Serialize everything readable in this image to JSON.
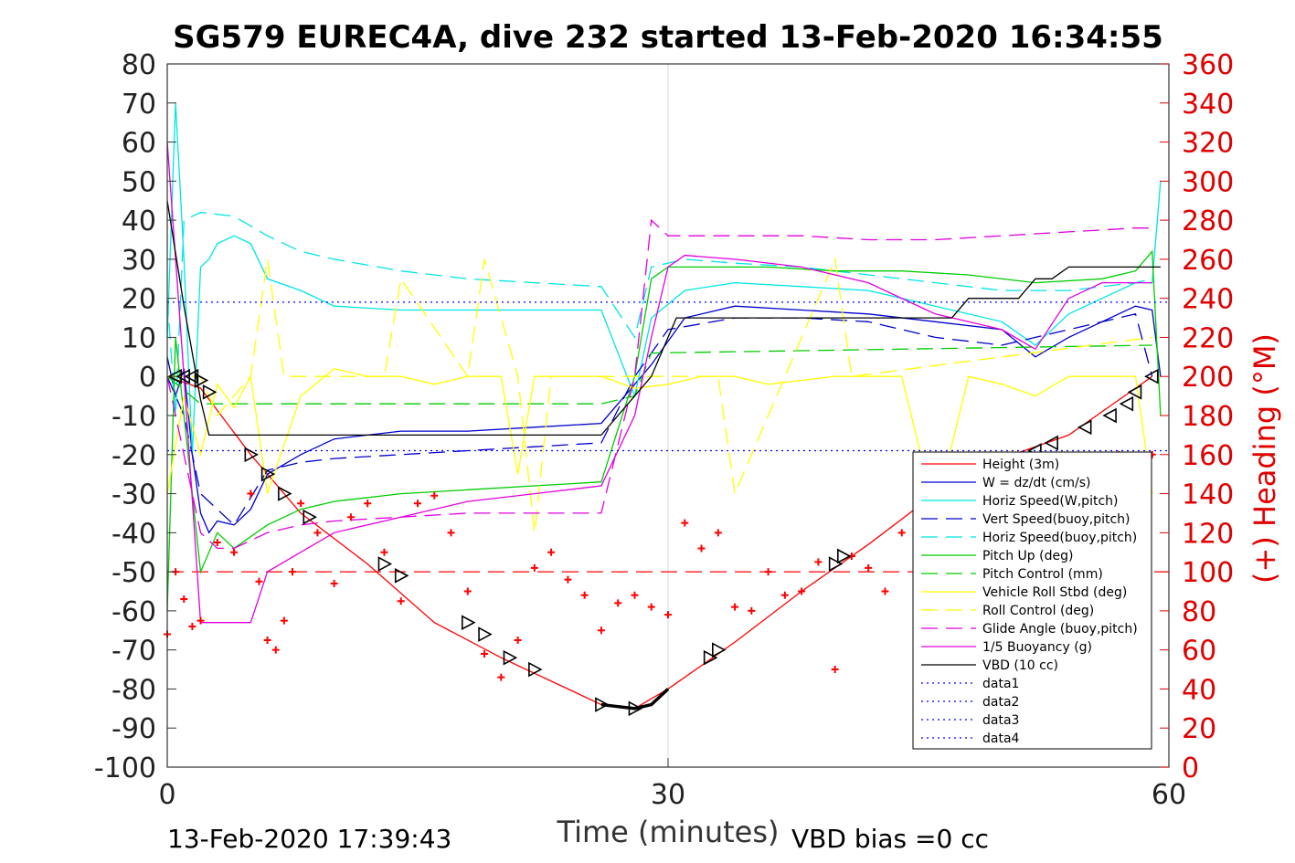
{
  "chart_data": {
    "type": "line",
    "title": "SG579 EUREC4A, dive 232 started 13-Feb-2020 16:34:55",
    "xlabel": "Time (minutes)",
    "ylabel_right": "(+) Heading (°M)",
    "footer_left": "13-Feb-2020 17:39:43",
    "footer_right": "VBD bias =0 cc",
    "xlim": [
      0,
      60
    ],
    "ylim": [
      -100,
      80
    ],
    "ylim_right": [
      0,
      360
    ],
    "x_ticks": [
      "0",
      "30",
      "60"
    ],
    "y_ticks": [
      "80",
      "70",
      "60",
      "50",
      "40",
      "30",
      "20",
      "10",
      "0",
      "-10",
      "-20",
      "-30",
      "-40",
      "-50",
      "-60",
      "-70",
      "-80",
      "-90",
      "-100"
    ],
    "y_ticks_right": [
      "360",
      "340",
      "320",
      "300",
      "280",
      "260",
      "240",
      "220",
      "200",
      "180",
      "160",
      "140",
      "120",
      "100",
      "80",
      "60",
      "40",
      "20",
      "0"
    ],
    "grid": "x=30 only",
    "legend_position": "bottom-right",
    "colors": {
      "height": "#ff0000",
      "w": "#0000cd",
      "hspeed": "#00e5e5",
      "vspeed_buoy": "#0000cd",
      "hspeed_buoy": "#00e5e5",
      "pitch": "#00cc00",
      "pitch_ctrl": "#00cc00",
      "roll": "#ffff00",
      "roll_ctrl": "#ffff00",
      "glide": "#e000e0",
      "buoy": "#e000e0",
      "vbd": "#000000",
      "heading": "#ff0000",
      "right_axis": "#e00000"
    },
    "series": [
      {
        "key": "height",
        "name": "Height (3m)",
        "style": "solid",
        "x": [
          0,
          2,
          5,
          8,
          12,
          16,
          20,
          24,
          26,
          28,
          30,
          34,
          38,
          42,
          46,
          50,
          54,
          58,
          59
        ],
        "y": [
          0,
          -3,
          -20,
          -35,
          -48,
          -63,
          -72,
          -80,
          -84,
          -85,
          -80,
          -68,
          -55,
          -43,
          -30,
          -21,
          -15,
          -3,
          0
        ]
      },
      {
        "key": "w",
        "name": "W = dz/dt (cm/s)",
        "style": "solid",
        "x": [
          0,
          0.5,
          1,
          1.5,
          2,
          2.5,
          3,
          4,
          5,
          6,
          8,
          10,
          14,
          18,
          22,
          26,
          28,
          29,
          31,
          34,
          38,
          42,
          46,
          50,
          52,
          54,
          56,
          58,
          59,
          59.5
        ],
        "y": [
          5,
          -5,
          2,
          -20,
          -35,
          -40,
          -37,
          -38,
          -34,
          -25,
          -20,
          -16,
          -14,
          -14,
          -13,
          -12,
          -2,
          3,
          15,
          18,
          17,
          16,
          14,
          12,
          5,
          10,
          14,
          18,
          17,
          0
        ]
      },
      {
        "key": "hspeed",
        "name": "Horiz Speed(W,pitch)",
        "style": "solid",
        "x": [
          0,
          0.5,
          1,
          1.5,
          2,
          2.5,
          3,
          4,
          5,
          6,
          8,
          10,
          14,
          18,
          22,
          26,
          28,
          29,
          31,
          34,
          38,
          42,
          46,
          50,
          52,
          54,
          56,
          58,
          59,
          59.5
        ],
        "y": [
          10,
          70,
          30,
          -20,
          28,
          30,
          34,
          36,
          34,
          25,
          22,
          18,
          17,
          17,
          17,
          17,
          -5,
          15,
          22,
          24,
          23,
          22,
          18,
          14,
          8,
          16,
          20,
          24,
          24,
          50
        ]
      },
      {
        "key": "vspeed_buoy",
        "name": "Vert Speed(buoy,pitch)",
        "style": "dashed",
        "x": [
          0,
          1,
          2,
          4,
          6,
          8,
          10,
          14,
          18,
          22,
          26,
          28,
          30,
          34,
          38,
          42,
          46,
          50,
          54,
          58,
          59
        ],
        "y": [
          0,
          -10,
          -30,
          -38,
          -24,
          -22,
          -21,
          -20,
          -19,
          -18,
          -17,
          0,
          12,
          15,
          15,
          14,
          10,
          8,
          12,
          16,
          0
        ]
      },
      {
        "key": "hspeed_buoy",
        "name": "Horiz Speed(buoy,pitch)",
        "style": "dashed",
        "x": [
          0,
          0.5,
          1,
          2,
          4,
          6,
          8,
          10,
          14,
          18,
          22,
          26,
          28,
          29,
          31,
          34,
          38,
          42,
          46,
          50,
          54,
          58,
          59
        ],
        "y": [
          20,
          -10,
          40,
          42,
          41,
          36,
          32,
          30,
          27,
          25,
          24,
          23,
          10,
          28,
          30,
          29,
          28,
          26,
          24,
          22,
          22,
          24,
          25
        ]
      },
      {
        "key": "pitch",
        "name": "Pitch Up (deg)",
        "style": "solid",
        "x": [
          0,
          0.5,
          1,
          2,
          3,
          4,
          6,
          8,
          10,
          14,
          18,
          22,
          26,
          28,
          29,
          30,
          32,
          36,
          40,
          44,
          48,
          52,
          56,
          58,
          59,
          59.5
        ],
        "y": [
          -60,
          10,
          -10,
          -50,
          -40,
          -44,
          -38,
          -34,
          -32,
          -30,
          -29,
          -28,
          -27,
          0,
          25,
          28,
          28,
          28,
          27,
          27,
          26,
          24,
          25,
          27,
          32,
          -10
        ]
      },
      {
        "key": "pitch_ctrl",
        "name": "Pitch Control (mm)",
        "style": "dashed",
        "x": [
          0,
          2,
          2.5,
          26,
          28,
          29,
          59
        ],
        "y": [
          0,
          -7,
          -7,
          -7,
          -5,
          6,
          8
        ]
      },
      {
        "key": "roll",
        "name": "Vehicle Roll Stbd (deg)",
        "style": "solid",
        "x": [
          0,
          1,
          2,
          3,
          4,
          5,
          6,
          8,
          10,
          12,
          14,
          16,
          18,
          20,
          21,
          22,
          24,
          26,
          28,
          30,
          32,
          34,
          36,
          40,
          44,
          46,
          48,
          50,
          52,
          54,
          56,
          58,
          59
        ],
        "y": [
          -30,
          -5,
          -20,
          -2,
          -8,
          0,
          -30,
          -5,
          2,
          0,
          0,
          -2,
          0,
          0,
          -25,
          0,
          0,
          0,
          -3,
          -2,
          0,
          0,
          -2,
          0,
          0,
          -35,
          0,
          -2,
          -5,
          0,
          0,
          0,
          -30
        ]
      },
      {
        "key": "roll_ctrl",
        "name": "Roll Control (deg)",
        "style": "dashed",
        "x": [
          0,
          2,
          3,
          5,
          6,
          7,
          13,
          14,
          18,
          19,
          21,
          22,
          23,
          33,
          34,
          40,
          41,
          59
        ],
        "y": [
          0,
          0,
          -10,
          0,
          30,
          0,
          0,
          25,
          0,
          30,
          0,
          -40,
          0,
          0,
          -30,
          30,
          0,
          10
        ]
      },
      {
        "key": "glide",
        "name": "Glide Angle (buoy,pitch)",
        "style": "dashed",
        "x": [
          0,
          1,
          2,
          3,
          4,
          6,
          8,
          10,
          14,
          18,
          22,
          26,
          28,
          29,
          30,
          34,
          38,
          42,
          46,
          50,
          54,
          58,
          59
        ],
        "y": [
          0,
          -20,
          -40,
          -44,
          -44,
          -40,
          -38,
          -37,
          -36,
          -35,
          -35,
          -35,
          0,
          40,
          36,
          36,
          36,
          35,
          35,
          36,
          37,
          38,
          38
        ]
      },
      {
        "key": "buoy",
        "name": "1/5 Buoyancy (g)",
        "style": "solid",
        "x": [
          0,
          1,
          2,
          3,
          4,
          5,
          6,
          8,
          10,
          14,
          18,
          22,
          26,
          28,
          29,
          30,
          31,
          34,
          38,
          42,
          46,
          48,
          50,
          52,
          54,
          56,
          58,
          59
        ],
        "y": [
          60,
          0,
          -63,
          -63,
          -63,
          -63,
          -50,
          -45,
          -40,
          -36,
          -32,
          -30,
          -28,
          -10,
          10,
          28,
          31,
          30,
          28,
          24,
          16,
          14,
          12,
          7,
          20,
          24,
          24,
          24
        ]
      },
      {
        "key": "vbd",
        "name": "VBD (10 cc)",
        "style": "solid",
        "x": [
          0,
          1,
          2,
          2.5,
          26,
          28,
          29,
          30,
          30.5,
          47,
          48,
          50,
          51,
          52,
          53,
          54,
          55,
          59.5
        ],
        "y": [
          45,
          18,
          -6,
          -15,
          -15,
          -5,
          0,
          10,
          15,
          15,
          20,
          20,
          20,
          25,
          25,
          28,
          28,
          28
        ]
      },
      {
        "key": "data1",
        "name": "data1",
        "style": "dotted",
        "x": [],
        "y": []
      },
      {
        "key": "data2",
        "name": "data2",
        "style": "dotted",
        "x": [],
        "y": []
      },
      {
        "key": "data3",
        "name": "data3",
        "style": "dotted",
        "x": [
          0,
          60
        ],
        "y": [
          19,
          19
        ]
      },
      {
        "key": "data4",
        "name": "data4",
        "style": "dotted",
        "x": [
          0,
          60
        ],
        "y": [
          -19,
          -19
        ]
      }
    ],
    "reference_lines": [
      {
        "y_right": 100,
        "color": "#ff0000",
        "style": "dashed"
      }
    ],
    "heading": {
      "name": "(+) Heading (°M)",
      "x": [
        0,
        0.5,
        1,
        1.5,
        2,
        3,
        4,
        5,
        5.5,
        6,
        6.5,
        7,
        7.5,
        8,
        9,
        10,
        11,
        12,
        13,
        14,
        15,
        16,
        17,
        18,
        19,
        20,
        21,
        22,
        23,
        24,
        25,
        26,
        27,
        28,
        29,
        30,
        31,
        32,
        33,
        34,
        35,
        36,
        37,
        38,
        39,
        40,
        41,
        42,
        43,
        44,
        45,
        46,
        47,
        48,
        49,
        50,
        51,
        52,
        53,
        54,
        55,
        56,
        57,
        58,
        59
      ],
      "y": [
        68,
        100,
        86,
        72,
        75,
        115,
        110,
        140,
        95,
        65,
        60,
        75,
        100,
        135,
        120,
        94,
        128,
        135,
        110,
        85,
        135,
        139,
        120,
        90,
        58,
        46,
        65,
        102,
        110,
        96,
        88,
        70,
        84,
        88,
        82,
        78,
        125,
        112,
        120,
        82,
        80,
        100,
        88,
        90,
        105,
        50,
        108,
        102,
        90,
        120,
        140,
        120,
        100,
        150,
        140,
        120,
        110,
        130,
        120,
        100,
        140,
        150,
        160,
        150,
        160
      ]
    },
    "markers": {
      "x": [
        0.5,
        1,
        1.5,
        2,
        2.5,
        5,
        6,
        7,
        8.5,
        13,
        14,
        18,
        19,
        20.5,
        22,
        26,
        28,
        32.5,
        33,
        40,
        40.5,
        52,
        53,
        55,
        56.5,
        57.5,
        58,
        59
      ],
      "y": [
        0,
        0,
        0,
        -1,
        -4,
        -20,
        -25,
        -30,
        -36,
        -48,
        -51,
        -63,
        -66,
        -72,
        -75,
        -84,
        -85,
        -72,
        -70,
        -48,
        -46,
        -19,
        -17,
        -13,
        -10,
        -7,
        -4,
        0
      ]
    }
  }
}
